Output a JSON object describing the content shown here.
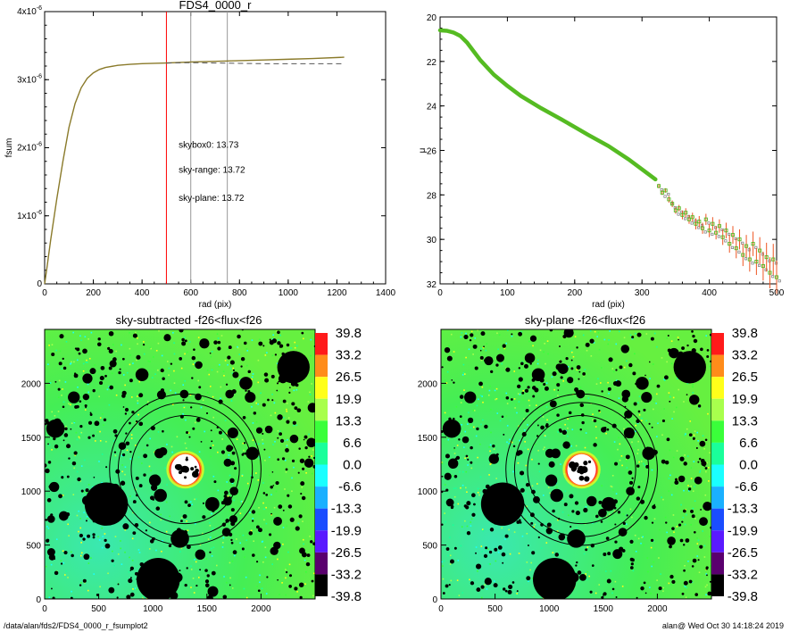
{
  "footer": {
    "path": "/data/alan/fds2/FDS4_0000_r_fsumplot2",
    "stamp": "alan@  Wed Oct 30 14:18:24 2019"
  },
  "chart_data": [
    {
      "type": "line",
      "title": "FDS4_0000_r",
      "xlabel": "rad (pix)",
      "ylabel": "fsum",
      "xlim": [
        0,
        1400
      ],
      "ylim": [
        0,
        4e-06
      ],
      "xticks": [
        "0",
        "200",
        "400",
        "600",
        "800",
        "1000",
        "1200",
        "1400"
      ],
      "yticks": [
        {
          "value": 0,
          "mant": "0",
          "exp": ""
        },
        {
          "value": 1e-06,
          "mant": "1x10",
          "exp": "-6"
        },
        {
          "value": 2e-06,
          "mant": "2x10",
          "exp": "-6"
        },
        {
          "value": 3e-06,
          "mant": "3x10",
          "exp": "-6"
        },
        {
          "value": 4e-06,
          "mant": "4x10",
          "exp": "-6"
        }
      ],
      "vlines": [
        {
          "x": 500,
          "color": "#ff0000"
        },
        {
          "x": 600,
          "color": "#999999"
        },
        {
          "x": 750,
          "color": "#999999"
        }
      ],
      "series": [
        {
          "style": "solid",
          "color": "#8a7a2a",
          "x": [
            0,
            10,
            25,
            50,
            75,
            100,
            125,
            150,
            175,
            200,
            225,
            250,
            300,
            350,
            400,
            450,
            500,
            600,
            700,
            800,
            900,
            1000,
            1100,
            1230
          ],
          "y": [
            0,
            2.5e-07,
            6.5e-07,
            1.25e-06,
            1.8e-06,
            2.3e-06,
            2.65e-06,
            2.88e-06,
            3.02e-06,
            3.1e-06,
            3.15e-06,
            3.18e-06,
            3.21e-06,
            3.225e-06,
            3.235e-06,
            3.24e-06,
            3.245e-06,
            3.26e-06,
            3.27e-06,
            3.28e-06,
            3.29e-06,
            3.3e-06,
            3.31e-06,
            3.33e-06
          ]
        },
        {
          "style": "dashed",
          "color": "#555555",
          "x": [
            500,
            600,
            700,
            800,
            900,
            1000,
            1100,
            1230
          ],
          "y": [
            3.245e-06,
            3.25e-06,
            3.245e-06,
            3.24e-06,
            3.235e-06,
            3.235e-06,
            3.235e-06,
            3.235e-06
          ]
        }
      ],
      "annotations": [
        {
          "text": "skybox0: 13.73",
          "x": 550,
          "y": 2e-06,
          "color": "#000000"
        },
        {
          "text": "sky-range: 13.72",
          "x": 550,
          "y": 1.63e-06,
          "color": "#ff0000"
        },
        {
          "text": "sky-plane: 13.72",
          "x": 550,
          "y": 1.22e-06,
          "color": "#22bb00"
        }
      ]
    },
    {
      "type": "scatter",
      "title": "",
      "xlabel": "rad (pix)",
      "ylabel": "μ",
      "xlim": [
        0,
        500
      ],
      "ylim": [
        32,
        20
      ],
      "xticks": [
        0,
        100,
        200,
        300,
        400,
        500
      ],
      "yticks": [
        20,
        22,
        24,
        26,
        28,
        30,
        32
      ],
      "series": [
        {
          "style": "smooth-band",
          "color": "#55bb22",
          "x": [
            0,
            10,
            20,
            30,
            40,
            50,
            60,
            80,
            100,
            120,
            150,
            180,
            200,
            220,
            250,
            280,
            300,
            320
          ],
          "y": [
            20.6,
            20.62,
            20.7,
            20.85,
            21.15,
            21.55,
            21.95,
            22.6,
            23.1,
            23.55,
            24.1,
            24.6,
            24.95,
            25.3,
            25.8,
            26.4,
            26.85,
            27.3
          ]
        },
        {
          "style": "points",
          "color": "#55bb22",
          "err_color": "#ee5522",
          "x": [
            325,
            330,
            335,
            340,
            345,
            350,
            355,
            360,
            365,
            370,
            375,
            380,
            385,
            390,
            395,
            400,
            405,
            410,
            415,
            420,
            425,
            430,
            435,
            440,
            445,
            450,
            455,
            460,
            465,
            470,
            475,
            480,
            485,
            490,
            495,
            500
          ],
          "y": [
            27.6,
            27.9,
            27.8,
            28.2,
            28.4,
            28.7,
            28.6,
            28.9,
            28.8,
            29.1,
            29.0,
            29.3,
            29.2,
            29.5,
            29.1,
            29.6,
            29.3,
            29.7,
            29.4,
            29.9,
            29.6,
            30.2,
            29.8,
            30.4,
            30.0,
            30.7,
            30.3,
            30.9,
            30.2,
            31.0,
            30.5,
            31.2,
            30.8,
            31.5,
            30.9,
            31.7
          ],
          "err": [
            0.1,
            0.1,
            0.1,
            0.15,
            0.15,
            0.15,
            0.15,
            0.2,
            0.2,
            0.2,
            0.2,
            0.25,
            0.25,
            0.25,
            0.25,
            0.3,
            0.3,
            0.3,
            0.3,
            0.35,
            0.35,
            0.4,
            0.4,
            0.45,
            0.45,
            0.5,
            0.5,
            0.55,
            0.55,
            0.6,
            0.6,
            0.65,
            0.65,
            0.7,
            0.7,
            0.75
          ]
        }
      ]
    },
    {
      "type": "heatmap",
      "title": "sky-subtracted -f26<flux<f26",
      "xlim": [
        0,
        2500
      ],
      "ylim": [
        0,
        2500
      ],
      "xticks": [
        0,
        500,
        1000,
        1500,
        2000
      ],
      "yticks": [
        0,
        500,
        1000,
        1500,
        2000
      ],
      "center": [
        1300,
        1200
      ],
      "ellipses": [
        {
          "a": 500,
          "b": 500
        },
        {
          "a": 620,
          "b": 620
        },
        {
          "a": 700,
          "b": 700
        }
      ],
      "colorbar": {
        "labels": [
          "39.8",
          "33.2",
          "26.5",
          "19.9",
          "13.3",
          "6.6",
          "0.0",
          "-6.6",
          "-13.3",
          "-19.9",
          "-26.5",
          "-33.2",
          "-39.8"
        ],
        "colors": [
          "#ff1a1a",
          "#ff8c1a",
          "#ffff1a",
          "#a8ff4d",
          "#3aff3a",
          "#1aff9a",
          "#1affff",
          "#1ab0ff",
          "#1a4dff",
          "#5a1aff",
          "#5a006e",
          "#000000"
        ]
      }
    },
    {
      "type": "heatmap",
      "title": "sky-plane -f26<flux<f26",
      "xlim": [
        0,
        2500
      ],
      "ylim": [
        0,
        2500
      ],
      "xticks": [
        0,
        500,
        1000,
        1500,
        2000
      ],
      "yticks": [
        0,
        500,
        1000,
        1500,
        2000
      ],
      "center": [
        1300,
        1200
      ],
      "ellipses": [
        {
          "a": 500,
          "b": 500
        },
        {
          "a": 620,
          "b": 620
        },
        {
          "a": 700,
          "b": 700
        }
      ],
      "colorbar": {
        "labels": [
          "39.8",
          "33.2",
          "26.5",
          "19.9",
          "13.3",
          "6.6",
          "0.0",
          "-6.6",
          "-13.3",
          "-19.9",
          "-26.5",
          "-33.2",
          "-39.8"
        ],
        "colors": [
          "#ff1a1a",
          "#ff8c1a",
          "#ffff1a",
          "#a8ff4d",
          "#3aff3a",
          "#1aff9a",
          "#1affff",
          "#1ab0ff",
          "#1a4dff",
          "#5a1aff",
          "#5a006e",
          "#000000"
        ]
      }
    }
  ]
}
